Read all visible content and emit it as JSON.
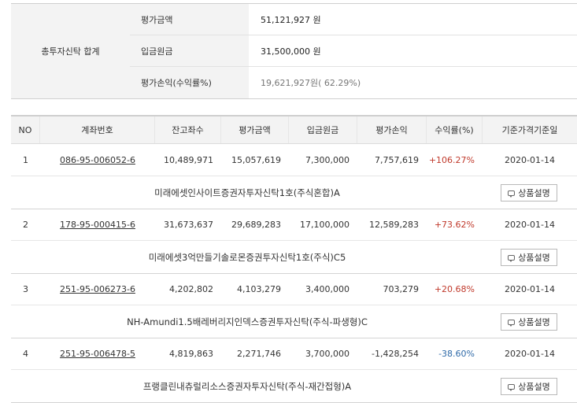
{
  "summary": {
    "title": "총투자신탁 합계",
    "rows": [
      {
        "label": "평가금액",
        "value": "51,121,927 원"
      },
      {
        "label": "입금원금",
        "value": "31,500,000 원"
      },
      {
        "label": "평가손익(수익률%)",
        "value": "19,621,927원( 62.29%)"
      }
    ]
  },
  "table": {
    "headers": [
      "NO",
      "계좌번호",
      "잔고좌수",
      "평가금액",
      "입금원금",
      "평가손익",
      "수익률(%)",
      "기준가격기준일"
    ],
    "button_label": "상품설명",
    "rows": [
      {
        "no": "1",
        "account": "086-95-006052-6",
        "units": "10,489,971",
        "eval": "15,057,619",
        "principal": "7,300,000",
        "pl": "7,757,619",
        "rate": "+106.27%",
        "rate_sign": "pos",
        "date": "2020-01-14",
        "product": "미래에셋인사이트증권자투자신탁1호(주식혼합)A"
      },
      {
        "no": "2",
        "account": "178-95-000415-6",
        "units": "31,673,637",
        "eval": "29,689,283",
        "principal": "17,100,000",
        "pl": "12,589,283",
        "rate": "+73.62%",
        "rate_sign": "pos",
        "date": "2020-01-14",
        "product": "미래에셋3억만들기솔로몬증권투자신탁1호(주식)C5"
      },
      {
        "no": "3",
        "account": "251-95-006273-6",
        "units": "4,202,802",
        "eval": "4,103,279",
        "principal": "3,400,000",
        "pl": "703,279",
        "rate": "+20.68%",
        "rate_sign": "pos",
        "date": "2020-01-14",
        "product": "NH-Amundi1.5배레버리지인덱스증권투자신탁(주식-파생형)C"
      },
      {
        "no": "4",
        "account": "251-95-006478-5",
        "units": "4,819,863",
        "eval": "2,271,746",
        "principal": "3,700,000",
        "pl": "-1,428,254",
        "rate": "-38.60%",
        "rate_sign": "neg",
        "date": "2020-01-14",
        "product": "프랭클린내츄럴리소스증권자투자신탁(주식-재간접형)A"
      }
    ]
  },
  "colors": {
    "positive": "#c0392b",
    "negative": "#2f6aa8",
    "header_bg": "#f3f3f3"
  },
  "icons": {
    "button": "speech-bubble-icon"
  }
}
